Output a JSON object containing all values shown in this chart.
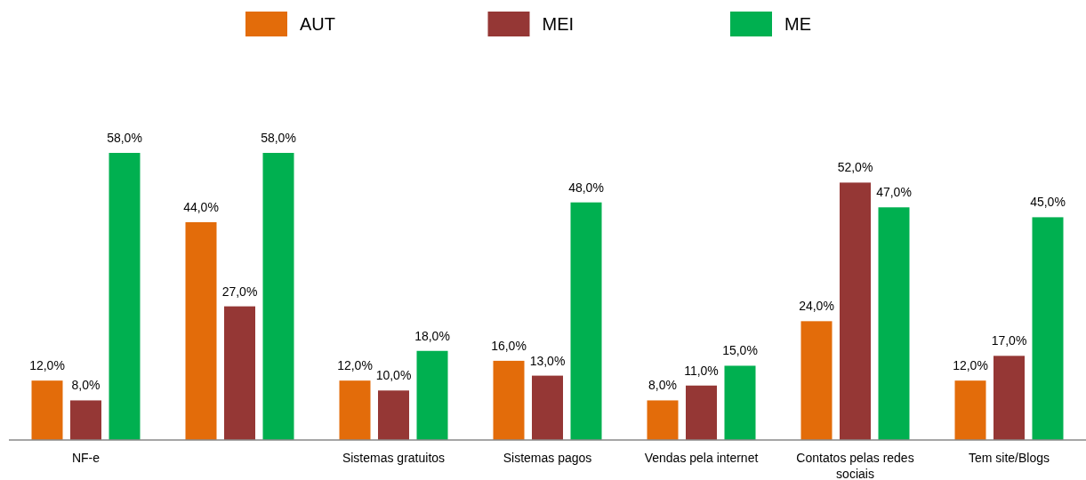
{
  "chart_data": {
    "type": "bar",
    "categories": [
      "NF-e",
      null,
      "Sistemas gratuitos",
      "Sistemas pagos",
      "Vendas pela internet",
      "Contatos pelas redes sociais",
      "Tem site/Blogs"
    ],
    "series": [
      {
        "name": "AUT",
        "color": "#e36c0a",
        "values": [
          12,
          44,
          12,
          16,
          8,
          24,
          12
        ],
        "value_labels": [
          "12,0%",
          "44,0%",
          "12,0%",
          "16,0%",
          "8,0%",
          "24,0%",
          "12,0%"
        ]
      },
      {
        "name": "MEI",
        "color": "#953735",
        "values": [
          8,
          27,
          10,
          13,
          11,
          52,
          17
        ],
        "value_labels": [
          "8,0%",
          "27,0%",
          "10,0%",
          "13,0%",
          "11,0%",
          "52,0%",
          "17,0%"
        ]
      },
      {
        "name": "ME",
        "color": "#00b050",
        "values": [
          58,
          58,
          18,
          48,
          15,
          47,
          45
        ],
        "value_labels": [
          "58,0%",
          "58,0%",
          "18,0%",
          "48,0%",
          "15,0%",
          "47,0%",
          "45,0%"
        ]
      }
    ],
    "legend": "top"
  }
}
